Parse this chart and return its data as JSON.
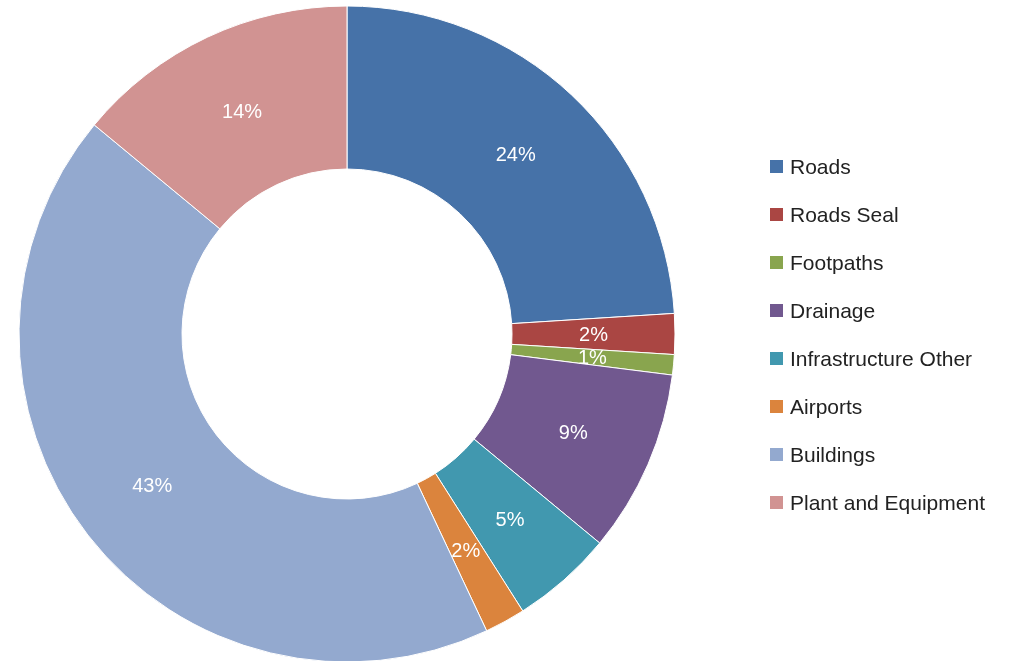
{
  "chart_data": {
    "type": "donut",
    "categories": [
      "Roads",
      "Roads Seal",
      "Footpaths",
      "Drainage",
      "Infrastructure Other",
      "Airports",
      "Buildings",
      "Plant and Equipment"
    ],
    "values": [
      24,
      2,
      1,
      9,
      5,
      2,
      43,
      14
    ],
    "colors": [
      "#4672a8",
      "#aa4643",
      "#89a54e",
      "#71588f",
      "#4198af",
      "#db843d",
      "#93a9cf",
      "#d19392"
    ],
    "value_labels": [
      "24%",
      "2%",
      "1%",
      "9%",
      "5%",
      "2%",
      "43%",
      "14%"
    ],
    "legend": "right"
  }
}
